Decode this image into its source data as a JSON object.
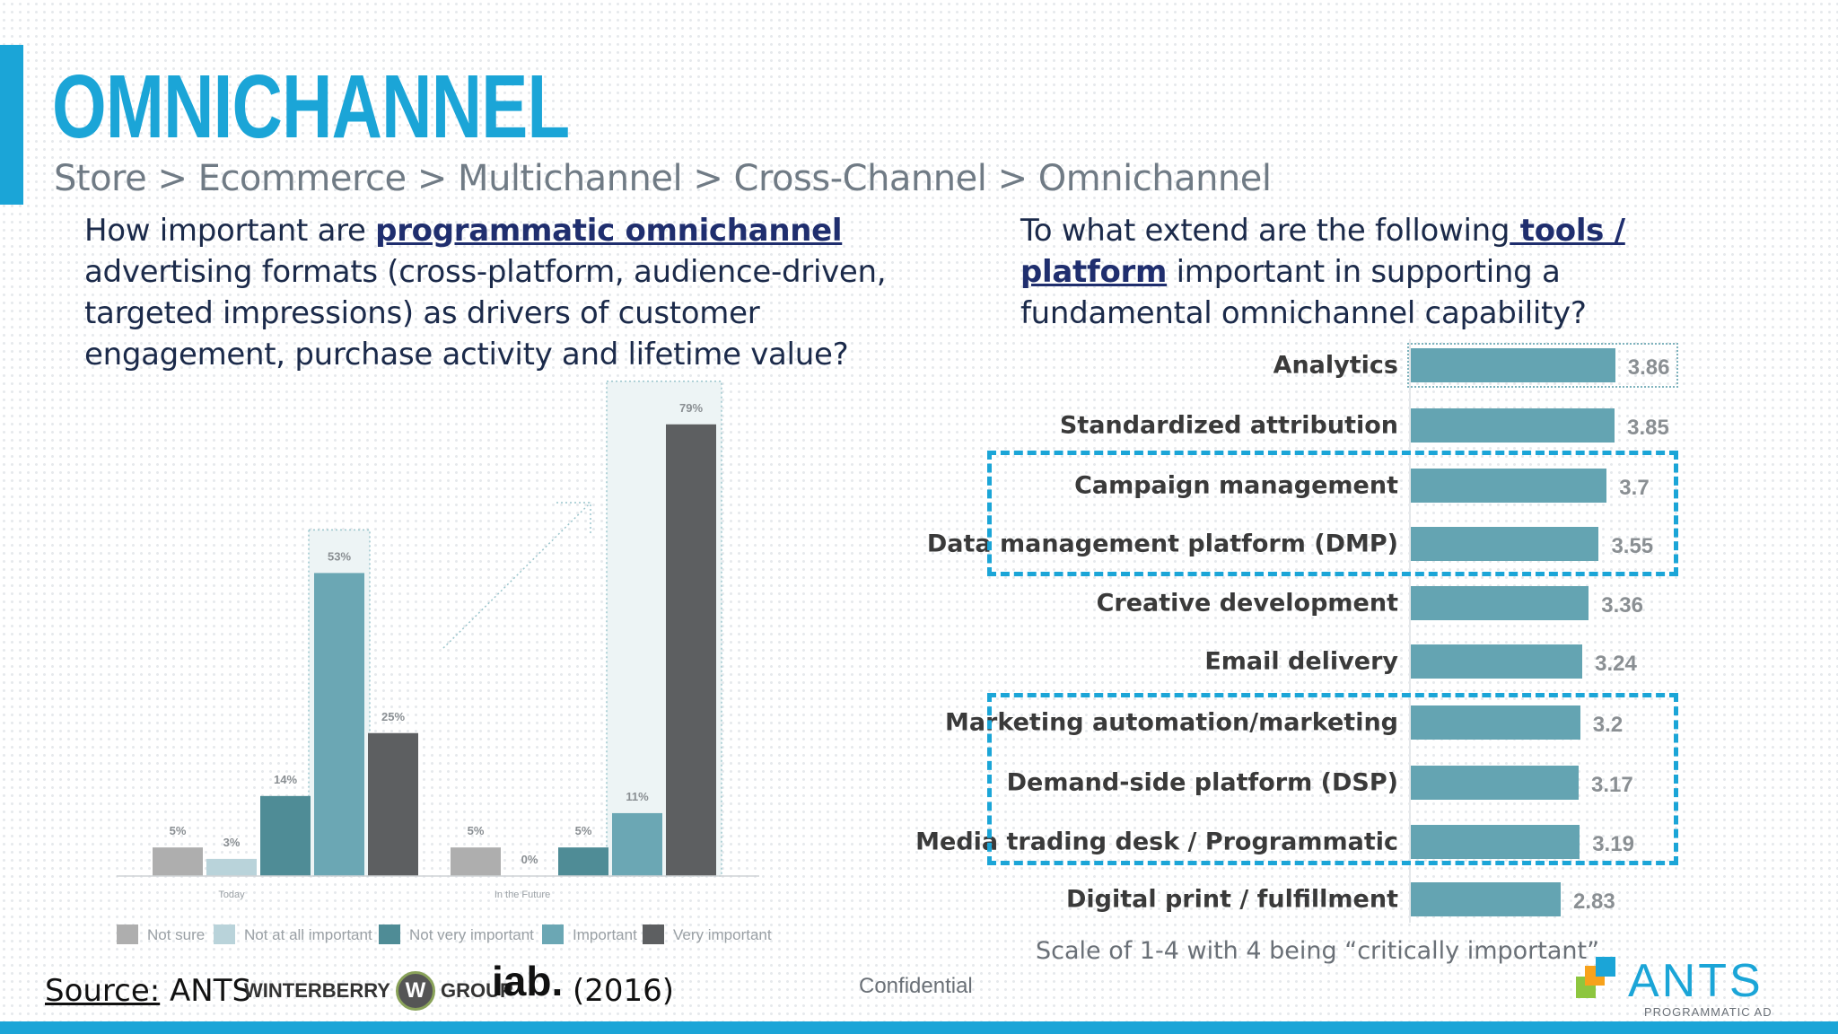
{
  "header": {
    "title": "OMNICHANNEL",
    "breadcrumb": "Store > Ecommerce > Multichannel > Cross-Channel > Omnichannel"
  },
  "left_question": {
    "pre": "How important are ",
    "emphasis": "programmatic omnichannel",
    "post": " advertising formats (cross-platform, audience-driven, targeted impressions) as drivers of customer engagement, purchase activity and lifetime value?"
  },
  "right_question": {
    "pre": "To what extend are the following",
    "emphasis": " tools / platform",
    "post": " important in supporting a fundamental omnichannel capability?"
  },
  "scale_note": "Scale of 1-4 with 4 being “critically important”",
  "footer": {
    "source_label": "Source:",
    "source_name": " ANTS",
    "winterberry_left": "WINTERBERRY",
    "winterberry_w": "W",
    "winterberry_right": "GROUP",
    "iab": "iab.",
    "year": "(2016)",
    "confidential": "Confidential",
    "ants_logo": "ANTS",
    "ants_tagline": "PROGRAMMATIC AD"
  },
  "colors": {
    "accent": "#1ba5d7",
    "bar_teal": "#64a4b2",
    "not_sure": "#aeaeae",
    "not_at_all": "#b9d3da",
    "not_very": "#4f8c96",
    "important": "#6ba7b4",
    "very": "#5d5f61"
  },
  "chart_data": [
    {
      "type": "bar",
      "categories": [
        "Today",
        "In the Future"
      ],
      "series": [
        {
          "name": "Not sure",
          "values": [
            5,
            5
          ],
          "labels": [
            "5%",
            "5%"
          ]
        },
        {
          "name": "Not at all important",
          "values": [
            3,
            0
          ],
          "labels": [
            "3%",
            "0%"
          ]
        },
        {
          "name": "Not very important",
          "values": [
            14,
            5
          ],
          "labels": [
            "14%",
            "5%"
          ]
        },
        {
          "name": "Important",
          "values": [
            53,
            11
          ],
          "labels": [
            "53%",
            "11%"
          ]
        },
        {
          "name": "Very important",
          "values": [
            25,
            79
          ],
          "labels": [
            "25%",
            "79%"
          ]
        }
      ],
      "legend_position": "bottom",
      "ylim": [
        0,
        80
      ]
    },
    {
      "type": "bar",
      "orientation": "horizontal",
      "categories": [
        "Analytics",
        "Standardized attribution",
        "Campaign management",
        "Data management platform (DMP)",
        "Creative development",
        "Email delivery",
        "Marketing automation/marketing",
        "Demand-side platform (DSP)",
        "Media trading desk / Programmatic",
        "Digital print / fulfillment"
      ],
      "values": [
        3.86,
        3.85,
        3.7,
        3.55,
        3.36,
        3.24,
        3.2,
        3.17,
        3.19,
        2.83
      ],
      "labels": [
        "3.86",
        "3.85",
        "3.7",
        "3.55",
        "3.36",
        "3.24",
        "3.2",
        "3.17",
        "3.19",
        "2.83"
      ],
      "xlim": [
        0,
        4
      ]
    }
  ]
}
